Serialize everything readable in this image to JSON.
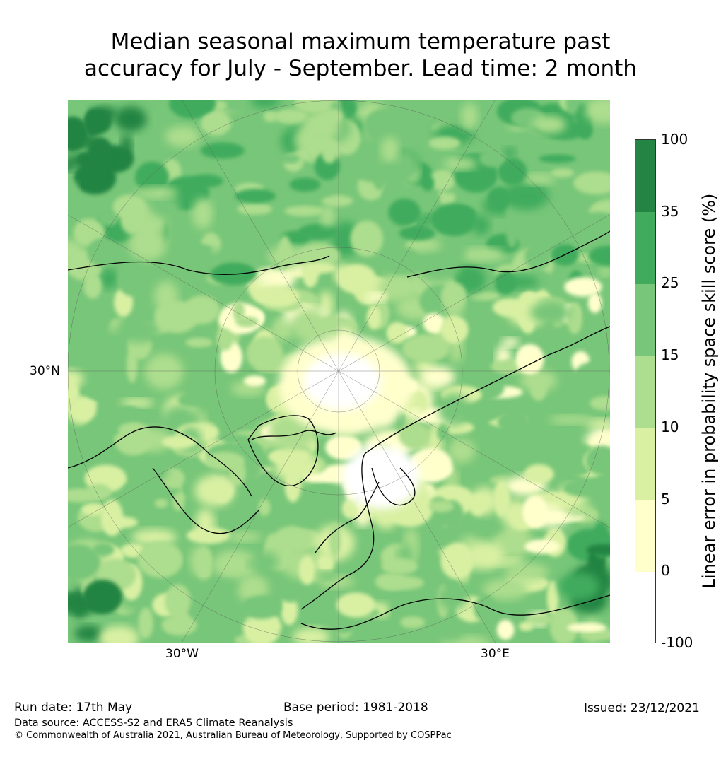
{
  "title": {
    "line1": "Median seasonal maximum temperature past",
    "line2": "accuracy for July - September. Lead time: 2 month"
  },
  "map": {
    "projection": "north-polar-stereographic",
    "labels": {
      "lat_30n": "30°N",
      "lon_30w": "30°W",
      "lon_30e": "30°E"
    }
  },
  "colorbar": {
    "label": "Linear error in probability space skill score (%)",
    "ticks": [
      "100",
      "35",
      "25",
      "15",
      "10",
      "5",
      "0",
      "-100"
    ],
    "bins": [
      {
        "from": -100,
        "to": 0,
        "color": "#ffffff"
      },
      {
        "from": 0,
        "to": 5,
        "color": "#ffffcc"
      },
      {
        "from": 5,
        "to": 10,
        "color": "#d9f0a3"
      },
      {
        "from": 10,
        "to": 15,
        "color": "#addd8e"
      },
      {
        "from": 15,
        "to": 25,
        "color": "#78c679"
      },
      {
        "from": 25,
        "to": 35,
        "color": "#41ab5d"
      },
      {
        "from": 35,
        "to": 100,
        "color": "#238443"
      }
    ]
  },
  "footer": {
    "run_date": "Run date: 17th May",
    "base_period": "Base period: 1981-2018",
    "issued": "Issued: 23/12/2021",
    "data_source": "Data source: ACCESS-S2 and ERA5 Climate Reanalysis",
    "copyright": "© Commonwealth of Australia 2021, Australian Bureau of Meteorology, Supported by COSPPac"
  }
}
